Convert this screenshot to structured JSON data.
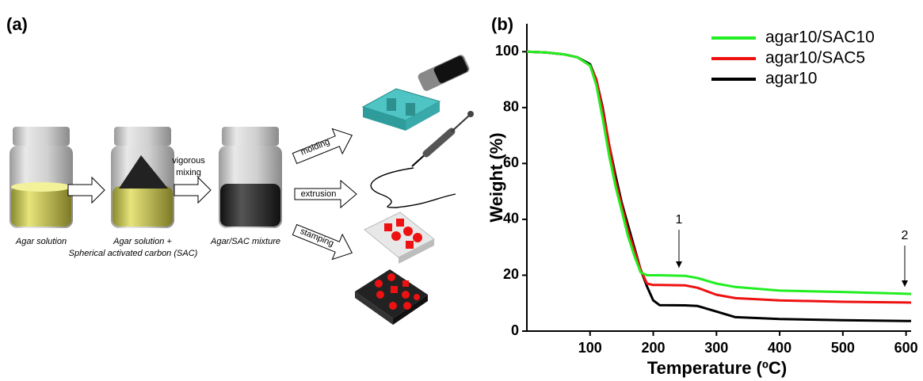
{
  "panel_a": {
    "label": "(a)",
    "steps": [
      "Agar solution",
      "Agar solution +",
      "Spherical activated carbon (SAC)",
      "Agar/SAC mixture"
    ],
    "mixing": [
      "vigorous",
      "mixing"
    ],
    "methods": [
      "molding",
      "extrusion",
      "stamping"
    ]
  },
  "chart_data": {
    "type": "line",
    "panel_label": "(b)",
    "xlabel": "Temperature (ºC)",
    "ylabel": "Weight (%)",
    "x": [
      0,
      30,
      60,
      80,
      100,
      110,
      120,
      130,
      140,
      150,
      160,
      170,
      180,
      190,
      200,
      210,
      250,
      270,
      300,
      330,
      400,
      500,
      608
    ],
    "series": [
      {
        "name": "agar10/SAC10",
        "color": "#22ee22",
        "values": [
          100,
          99.7,
          99,
          98,
          95,
          88,
          76,
          63,
          52,
          43,
          34,
          27,
          21,
          20,
          20,
          20,
          19.8,
          19,
          17,
          15.8,
          14.5,
          14,
          13.3
        ]
      },
      {
        "name": "agar10/SAC5",
        "color": "#ee1111",
        "values": [
          100,
          99.7,
          99,
          98,
          95,
          90,
          79,
          67,
          54,
          45,
          36,
          29,
          22,
          17,
          16.5,
          16.5,
          16.4,
          15.5,
          13,
          11.8,
          11,
          10.5,
          10.2
        ]
      },
      {
        "name": "agar10",
        "color": "#000000",
        "values": [
          100,
          99.7,
          99,
          98,
          95.5,
          90,
          80,
          67,
          56,
          46,
          38,
          30,
          22,
          16,
          11,
          9.3,
          9.2,
          9,
          7,
          5,
          4.3,
          3.9,
          3.6
        ]
      }
    ],
    "xlim": [
      0,
      608
    ],
    "ylim": [
      0,
      110
    ],
    "xticks": [
      100,
      200,
      300,
      400,
      500,
      600
    ],
    "yticks": [
      0,
      20,
      40,
      60,
      80,
      100
    ],
    "legend": "upper right",
    "annotations": [
      "1",
      "2"
    ]
  }
}
